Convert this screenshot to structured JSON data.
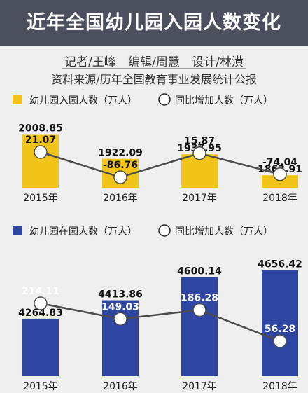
{
  "header": {
    "title": "近年全国幼儿园入园人数变化"
  },
  "credits": {
    "reporter": "记者/王峰",
    "editor": "编辑/周慧",
    "designer": "设计/林潢"
  },
  "source": "资料来源/历年全国教育事业发展统计公报",
  "colors": {
    "yellow": "#f2c41a",
    "blue": "#2f45a2",
    "line": "#4b4b4b",
    "header": "#4b4f5e"
  },
  "chart_data": [
    {
      "type": "bar",
      "categories": [
        "2015年",
        "2016年",
        "2017年",
        "2018年"
      ],
      "series": [
        {
          "name": "幼儿园入园人数（万人）",
          "values": [
            2008.85,
            1922.09,
            1937.95,
            1863.91
          ],
          "value_labels": [
            "2008.85",
            "1922.09",
            "1937.95",
            "1863.91"
          ]
        },
        {
          "name": "同比增加人数（万人）",
          "values": [
            21.07,
            -86.76,
            15.87,
            -74.04
          ],
          "value_labels": [
            "21.07",
            "-86.76",
            "15.87",
            "-74.04"
          ]
        }
      ]
    },
    {
      "type": "bar",
      "categories": [
        "2015年",
        "2016年",
        "2017年",
        "2018年"
      ],
      "series": [
        {
          "name": "幼儿园在园人数（万人）",
          "values": [
            4264.83,
            4413.86,
            4600.14,
            4656.42
          ],
          "value_labels": [
            "4264.83",
            "4413.86",
            "4600.14",
            "4656.42"
          ]
        },
        {
          "name": "同比增加人数（万人）",
          "values": [
            214.11,
            149.03,
            186.28,
            56.28
          ],
          "value_labels": [
            "214.11",
            "149.03",
            "186.28",
            "56.28"
          ]
        }
      ]
    }
  ]
}
